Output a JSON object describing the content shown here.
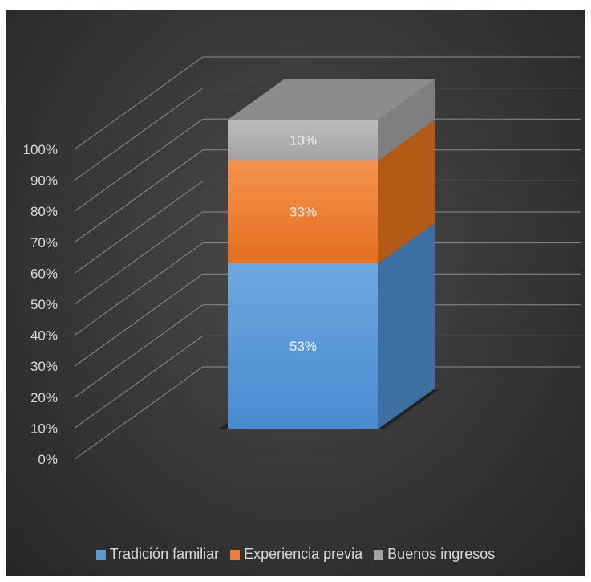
{
  "chart_data": {
    "type": "bar",
    "subtype": "3d-stacked-100",
    "categories": [
      ""
    ],
    "series": [
      {
        "name": "Tradición familiar",
        "values": [
          53
        ],
        "label": "53%",
        "color": "#5b9bd5"
      },
      {
        "name": "Experiencia previa",
        "values": [
          33
        ],
        "label": "33%",
        "color": "#ed7d31"
      },
      {
        "name": "Buenos ingresos",
        "values": [
          13
        ],
        "label": "13%",
        "color": "#a5a5a5"
      }
    ],
    "ytick_labels": [
      "0%",
      "10%",
      "20%",
      "30%",
      "40%",
      "50%",
      "60%",
      "70%",
      "80%",
      "90%",
      "100%"
    ],
    "ylim": [
      0,
      100
    ],
    "title": "",
    "xlabel": "",
    "ylabel": "",
    "grid": true,
    "legend_position": "bottom",
    "background": "#3a3a3a"
  }
}
